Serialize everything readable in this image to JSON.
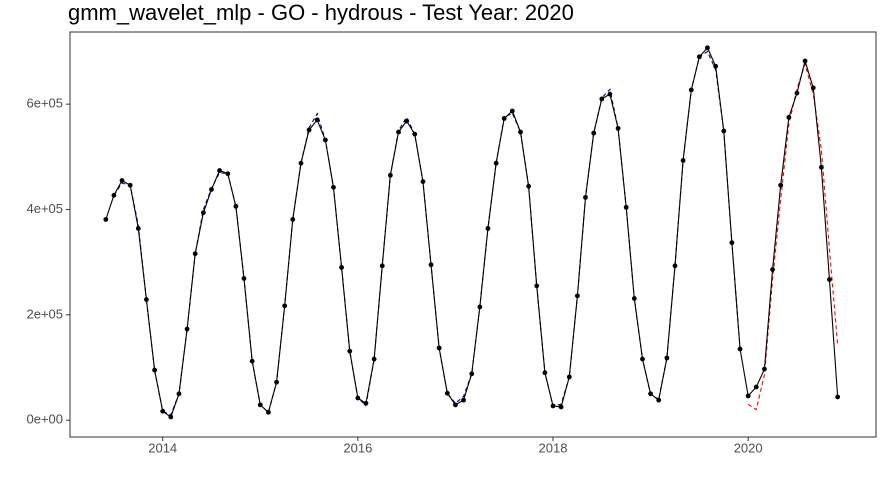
{
  "chart_data": {
    "type": "line",
    "title": "gmm_wavelet_mlp - GO - hydrous - Test Year: 2020",
    "x": [
      2013.417,
      2013.5,
      2013.583,
      2013.667,
      2013.75,
      2013.833,
      2013.917,
      2014.0,
      2014.083,
      2014.167,
      2014.25,
      2014.333,
      2014.417,
      2014.5,
      2014.583,
      2014.667,
      2014.75,
      2014.833,
      2014.917,
      2015.0,
      2015.083,
      2015.167,
      2015.25,
      2015.333,
      2015.417,
      2015.5,
      2015.583,
      2015.667,
      2015.75,
      2015.833,
      2015.917,
      2016.0,
      2016.083,
      2016.167,
      2016.25,
      2016.333,
      2016.417,
      2016.5,
      2016.583,
      2016.667,
      2016.75,
      2016.833,
      2016.917,
      2017.0,
      2017.083,
      2017.167,
      2017.25,
      2017.333,
      2017.417,
      2017.5,
      2017.583,
      2017.667,
      2017.75,
      2017.833,
      2017.917,
      2018.0,
      2018.083,
      2018.167,
      2018.25,
      2018.333,
      2018.417,
      2018.5,
      2018.583,
      2018.667,
      2018.75,
      2018.833,
      2018.917,
      2019.0,
      2019.083,
      2019.167,
      2019.25,
      2019.333,
      2019.417,
      2019.5,
      2019.583,
      2019.667,
      2019.75,
      2019.833,
      2019.917,
      2020.0,
      2020.083,
      2020.167,
      2020.25,
      2020.333,
      2020.417,
      2020.5,
      2020.583,
      2020.667,
      2020.75,
      2020.833,
      2020.917
    ],
    "series": [
      {
        "color": "#00008b",
        "dash": true,
        "markers": false,
        "values": [
          null,
          427000,
          450000,
          446000,
          370000,
          229000,
          95000,
          17000,
          10000,
          50000,
          173000,
          316000,
          400000,
          440000,
          470000,
          468000,
          406000,
          269000,
          112000,
          29000,
          15000,
          72000,
          217000,
          381000,
          488000,
          555000,
          582000,
          532000,
          442000,
          290000,
          131000,
          42000,
          28000,
          116000,
          293000,
          465000,
          550000,
          575000,
          543000,
          453000,
          295000,
          137000,
          51000,
          32000,
          45000,
          88000,
          215000,
          364000,
          488000,
          575000,
          583000,
          547000,
          444000,
          255000,
          90000,
          27000,
          30000,
          82000,
          236000,
          423000,
          545000,
          612000,
          628000,
          554000,
          404000,
          231000,
          116000,
          48000,
          40000,
          118000,
          293000,
          493000,
          627000,
          690000,
          700000,
          665000,
          549000,
          337000,
          135000,
          null,
          null,
          null,
          null,
          null,
          null,
          null,
          null,
          null,
          null,
          null,
          null
        ]
      },
      {
        "color": "#ff0000",
        "dash": true,
        "markers": false,
        "values": [
          null,
          null,
          null,
          null,
          null,
          null,
          null,
          null,
          null,
          null,
          null,
          null,
          null,
          null,
          null,
          null,
          null,
          null,
          null,
          null,
          null,
          null,
          null,
          null,
          null,
          null,
          null,
          null,
          null,
          null,
          null,
          null,
          null,
          null,
          null,
          null,
          null,
          null,
          null,
          null,
          null,
          null,
          null,
          null,
          null,
          null,
          null,
          null,
          null,
          null,
          null,
          null,
          null,
          null,
          null,
          null,
          null,
          null,
          null,
          null,
          null,
          null,
          null,
          null,
          null,
          null,
          null,
          null,
          null,
          null,
          null,
          null,
          null,
          null,
          null,
          null,
          null,
          null,
          null,
          30000,
          20000,
          86000,
          267000,
          419000,
          562000,
          629000,
          676000,
          619000,
          514000,
          324000,
          143000
        ]
      },
      {
        "color": "#000000",
        "dash": false,
        "markers": true,
        "values": [
          381000,
          427000,
          455000,
          446000,
          364000,
          229000,
          95000,
          17000,
          6000,
          50000,
          173000,
          316000,
          394000,
          438000,
          474000,
          468000,
          406000,
          269000,
          112000,
          29000,
          15000,
          72000,
          217000,
          381000,
          488000,
          551000,
          570000,
          532000,
          442000,
          290000,
          131000,
          42000,
          32000,
          116000,
          293000,
          465000,
          547000,
          568000,
          543000,
          453000,
          295000,
          137000,
          51000,
          29000,
          38000,
          88000,
          215000,
          364000,
          488000,
          573000,
          587000,
          547000,
          444000,
          255000,
          90000,
          27000,
          25000,
          82000,
          236000,
          423000,
          545000,
          610000,
          619000,
          554000,
          404000,
          231000,
          116000,
          50000,
          38000,
          118000,
          293000,
          493000,
          627000,
          690000,
          707000,
          672000,
          549000,
          337000,
          135000,
          46000,
          63000,
          97000,
          286000,
          446000,
          575000,
          621000,
          682000,
          631000,
          480000,
          267000,
          44000
        ]
      }
    ],
    "xlim": [
      2013.05,
      2021.31
    ],
    "xticks": [
      2014,
      2016,
      2018,
      2020
    ],
    "ylim": [
      -32000,
      737000
    ],
    "yticks": [
      {
        "value": 0,
        "label": "0e+00"
      },
      {
        "value": 200000,
        "label": "2e+05"
      },
      {
        "value": 400000,
        "label": "4e+05"
      },
      {
        "value": 600000,
        "label": "6e+05"
      }
    ],
    "grid": false
  }
}
